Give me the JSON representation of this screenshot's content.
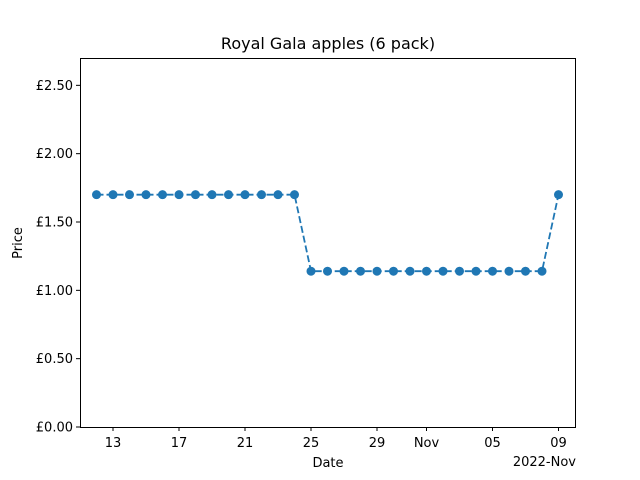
{
  "chart_data": {
    "type": "line",
    "title": "Royal Gala apples (6 pack)",
    "xlabel": "Date",
    "ylabel": "Price",
    "x_offset_label": "2022-Nov",
    "ylim": [
      0,
      2.7
    ],
    "xlim": [
      "2022-10-11",
      "2022-11-10"
    ],
    "x_ticks": [
      {
        "date": "2022-10-13",
        "label": "13"
      },
      {
        "date": "2022-10-17",
        "label": "17"
      },
      {
        "date": "2022-10-21",
        "label": "21"
      },
      {
        "date": "2022-10-25",
        "label": "25"
      },
      {
        "date": "2022-10-29",
        "label": "29"
      },
      {
        "date": "2022-11-01",
        "label": "Nov"
      },
      {
        "date": "2022-11-05",
        "label": "05"
      },
      {
        "date": "2022-11-09",
        "label": "09"
      }
    ],
    "y_ticks": [
      {
        "value": 0.0,
        "label": "£0.00"
      },
      {
        "value": 0.5,
        "label": "£0.50"
      },
      {
        "value": 1.0,
        "label": "£1.00"
      },
      {
        "value": 1.5,
        "label": "£1.50"
      },
      {
        "value": 2.0,
        "label": "£2.00"
      },
      {
        "value": 2.5,
        "label": "£2.50"
      }
    ],
    "grid": false,
    "line_style": "dashed",
    "marker": "circle",
    "color": "#1f77b4",
    "series": [
      {
        "x": [
          "2022-10-12",
          "2022-10-13",
          "2022-10-14",
          "2022-10-15",
          "2022-10-16",
          "2022-10-17",
          "2022-10-18",
          "2022-10-19",
          "2022-10-20",
          "2022-10-21",
          "2022-10-22",
          "2022-10-23",
          "2022-10-24",
          "2022-10-25",
          "2022-10-26",
          "2022-10-27",
          "2022-10-28",
          "2022-10-29",
          "2022-10-30",
          "2022-10-31",
          "2022-11-01",
          "2022-11-02",
          "2022-11-03",
          "2022-11-04",
          "2022-11-05",
          "2022-11-06",
          "2022-11-07",
          "2022-11-08",
          "2022-11-09"
        ],
        "y": [
          1.7,
          1.7,
          1.7,
          1.7,
          1.7,
          1.7,
          1.7,
          1.7,
          1.7,
          1.7,
          1.7,
          1.7,
          1.7,
          1.14,
          1.14,
          1.14,
          1.14,
          1.14,
          1.14,
          1.14,
          1.14,
          1.14,
          1.14,
          1.14,
          1.14,
          1.14,
          1.14,
          1.14,
          1.7
        ]
      }
    ]
  }
}
